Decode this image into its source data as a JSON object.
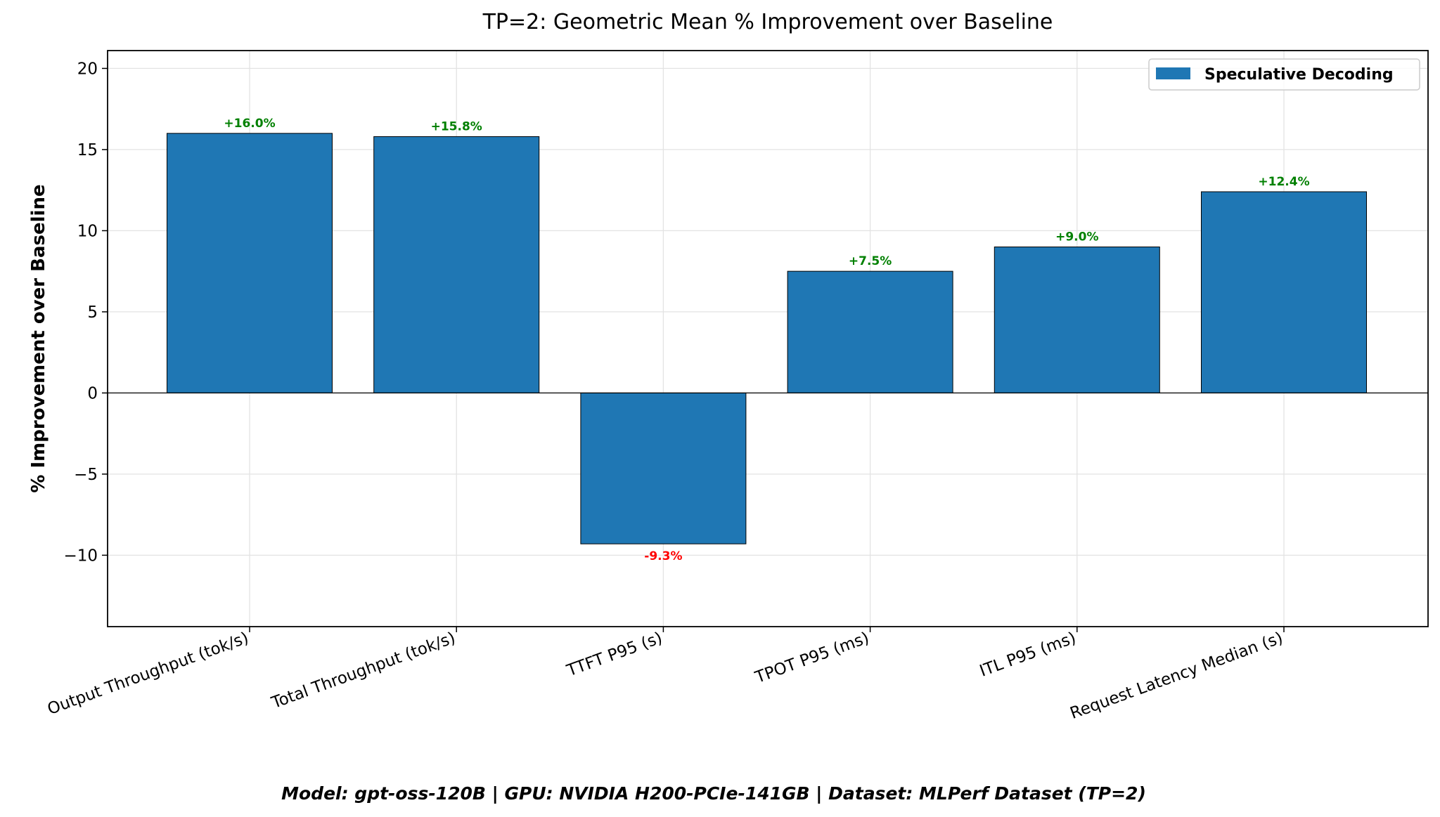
{
  "chart_data": {
    "type": "bar",
    "title": "TP=2: Geometric Mean % Improvement over Baseline",
    "xlabel": "",
    "ylabel": "% Improvement over Baseline",
    "categories": [
      "Output Throughput (tok/s)",
      "Total Throughput (tok/s)",
      "TTFT P95 (s)",
      "TPOT P95 (ms)",
      "ITL P95 (ms)",
      "Request Latency Median (s)"
    ],
    "series": [
      {
        "name": "Speculative Decoding",
        "values": [
          16.0,
          15.8,
          -9.3,
          7.5,
          9.0,
          12.4
        ],
        "color": "#1f77b4"
      }
    ],
    "data_labels": [
      "+16.0%",
      "+15.8%",
      "-9.3%",
      "+7.5%",
      "+9.0%",
      "+12.4%"
    ],
    "positive_label_color": "#008000",
    "negative_label_color": "#ff0000",
    "ylim": [
      -14.4,
      21.1
    ],
    "yticks": [
      -10,
      -5,
      0,
      5,
      10,
      15,
      20
    ],
    "ytick_labels": [
      "−10",
      "−5",
      "0",
      "5",
      "10",
      "15",
      "20"
    ],
    "grid": true,
    "legend_position": "top-right",
    "footer": "Model: gpt-oss-120B | GPU: NVIDIA H200-PCIe-141GB | Dataset: MLPerf Dataset (TP=2)"
  }
}
